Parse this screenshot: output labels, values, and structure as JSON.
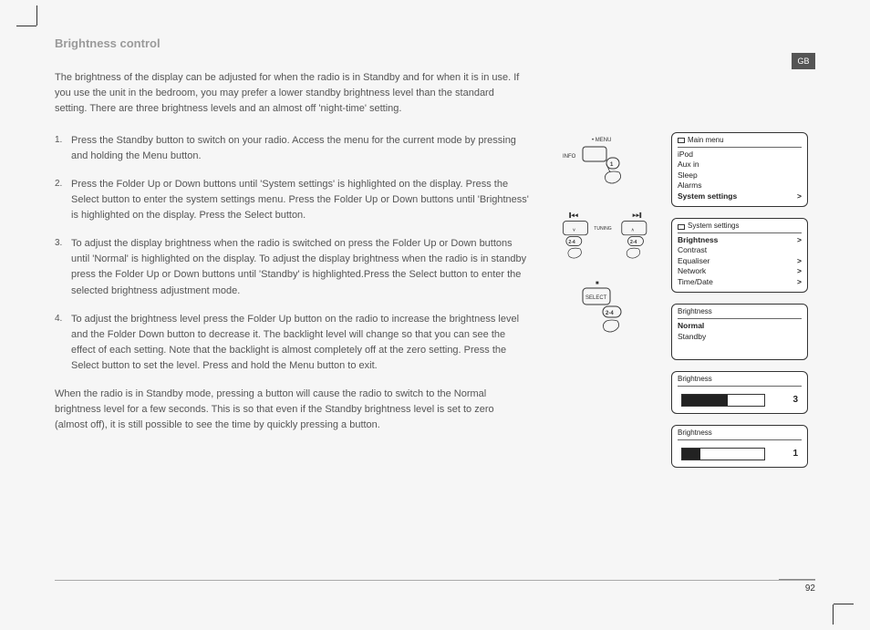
{
  "locale_tab": "GB",
  "page_number": "92",
  "title": "Brightness control",
  "intro": "The brightness of the display can be adjusted for when the radio is in Standby and for when it is in use. If you use the unit in the bedroom, you may prefer a lower standby brightness level than the standard setting. There are three brightness levels and an almost off 'night-time' setting.",
  "steps": [
    {
      "n": "1.",
      "t": "Press the Standby button to switch on your radio. Access the menu for the current mode by pressing and holding the Menu button."
    },
    {
      "n": "2.",
      "t": "Press the Folder Up or Down buttons until 'System settings' is highlighted on the display. Press the Select button to enter the system settings menu. Press the Folder Up or Down buttons until 'Brightness' is highlighted on the display. Press the Select button."
    },
    {
      "n": "3.",
      "t": "To adjust the display brightness when the radio is switched on press the Folder Up or Down buttons until 'Normal' is highlighted on the display. To adjust the display brightness when the radio is in standby press the Folder Up or Down buttons until 'Standby' is highlighted.Press the Select button to enter the selected brightness adjustment mode."
    },
    {
      "n": "4.",
      "t": "To adjust the brightness level press the Folder Up button on the radio to increase the brightness level and the Folder Down button to decrease it. The backlight level will change so that you can see the effect of each setting. Note that the backlight is almost completely off at the zero setting. Press the Select button to set the level. Press and hold the Menu button to exit."
    }
  ],
  "outro": "When the radio is in Standby mode, pressing a button will cause the radio to switch to the Normal brightness level for a few seconds. This is so that even if the Standby brightness level is set to zero (almost off), it is still possible to see the time by quickly pressing a button.",
  "diagrams": {
    "menu": {
      "top_label": "• MENU",
      "side_label": "INFO",
      "bubble": "1"
    },
    "tuning": {
      "center": "TUNING",
      "left": "2-4",
      "right": "2-4",
      "skip_prev": "▐◀◀",
      "skip_next": "▶▶▌",
      "down": "∨",
      "up": "∧"
    },
    "select": {
      "label": "SELECT",
      "stop": "■",
      "bubble": "2-4"
    }
  },
  "screens": {
    "main_menu": {
      "header": "Main menu",
      "items": [
        {
          "l": "iPod",
          "r": ""
        },
        {
          "l": "Aux in",
          "r": ""
        },
        {
          "l": "Sleep",
          "r": ""
        },
        {
          "l": "Alarms",
          "r": ""
        },
        {
          "l": "System settings",
          "r": ">",
          "bold": true
        }
      ]
    },
    "system_settings": {
      "header": "System settings",
      "items": [
        {
          "l": "Brightness",
          "r": ">",
          "bold": true
        },
        {
          "l": "Contrast",
          "r": ""
        },
        {
          "l": "Equaliser",
          "r": ">"
        },
        {
          "l": "Network",
          "r": ">"
        },
        {
          "l": "Time/Date",
          "r": ">"
        }
      ]
    },
    "brightness_menu": {
      "header": "Brightness",
      "items": [
        {
          "l": "Normal",
          "r": "",
          "bold": true
        },
        {
          "l": "Standby",
          "r": ""
        }
      ]
    },
    "bar1": {
      "header": "Brightness",
      "value": "3",
      "fill_pct": 55
    },
    "bar2": {
      "header": "Brightness",
      "value": "1",
      "fill_pct": 22
    }
  }
}
